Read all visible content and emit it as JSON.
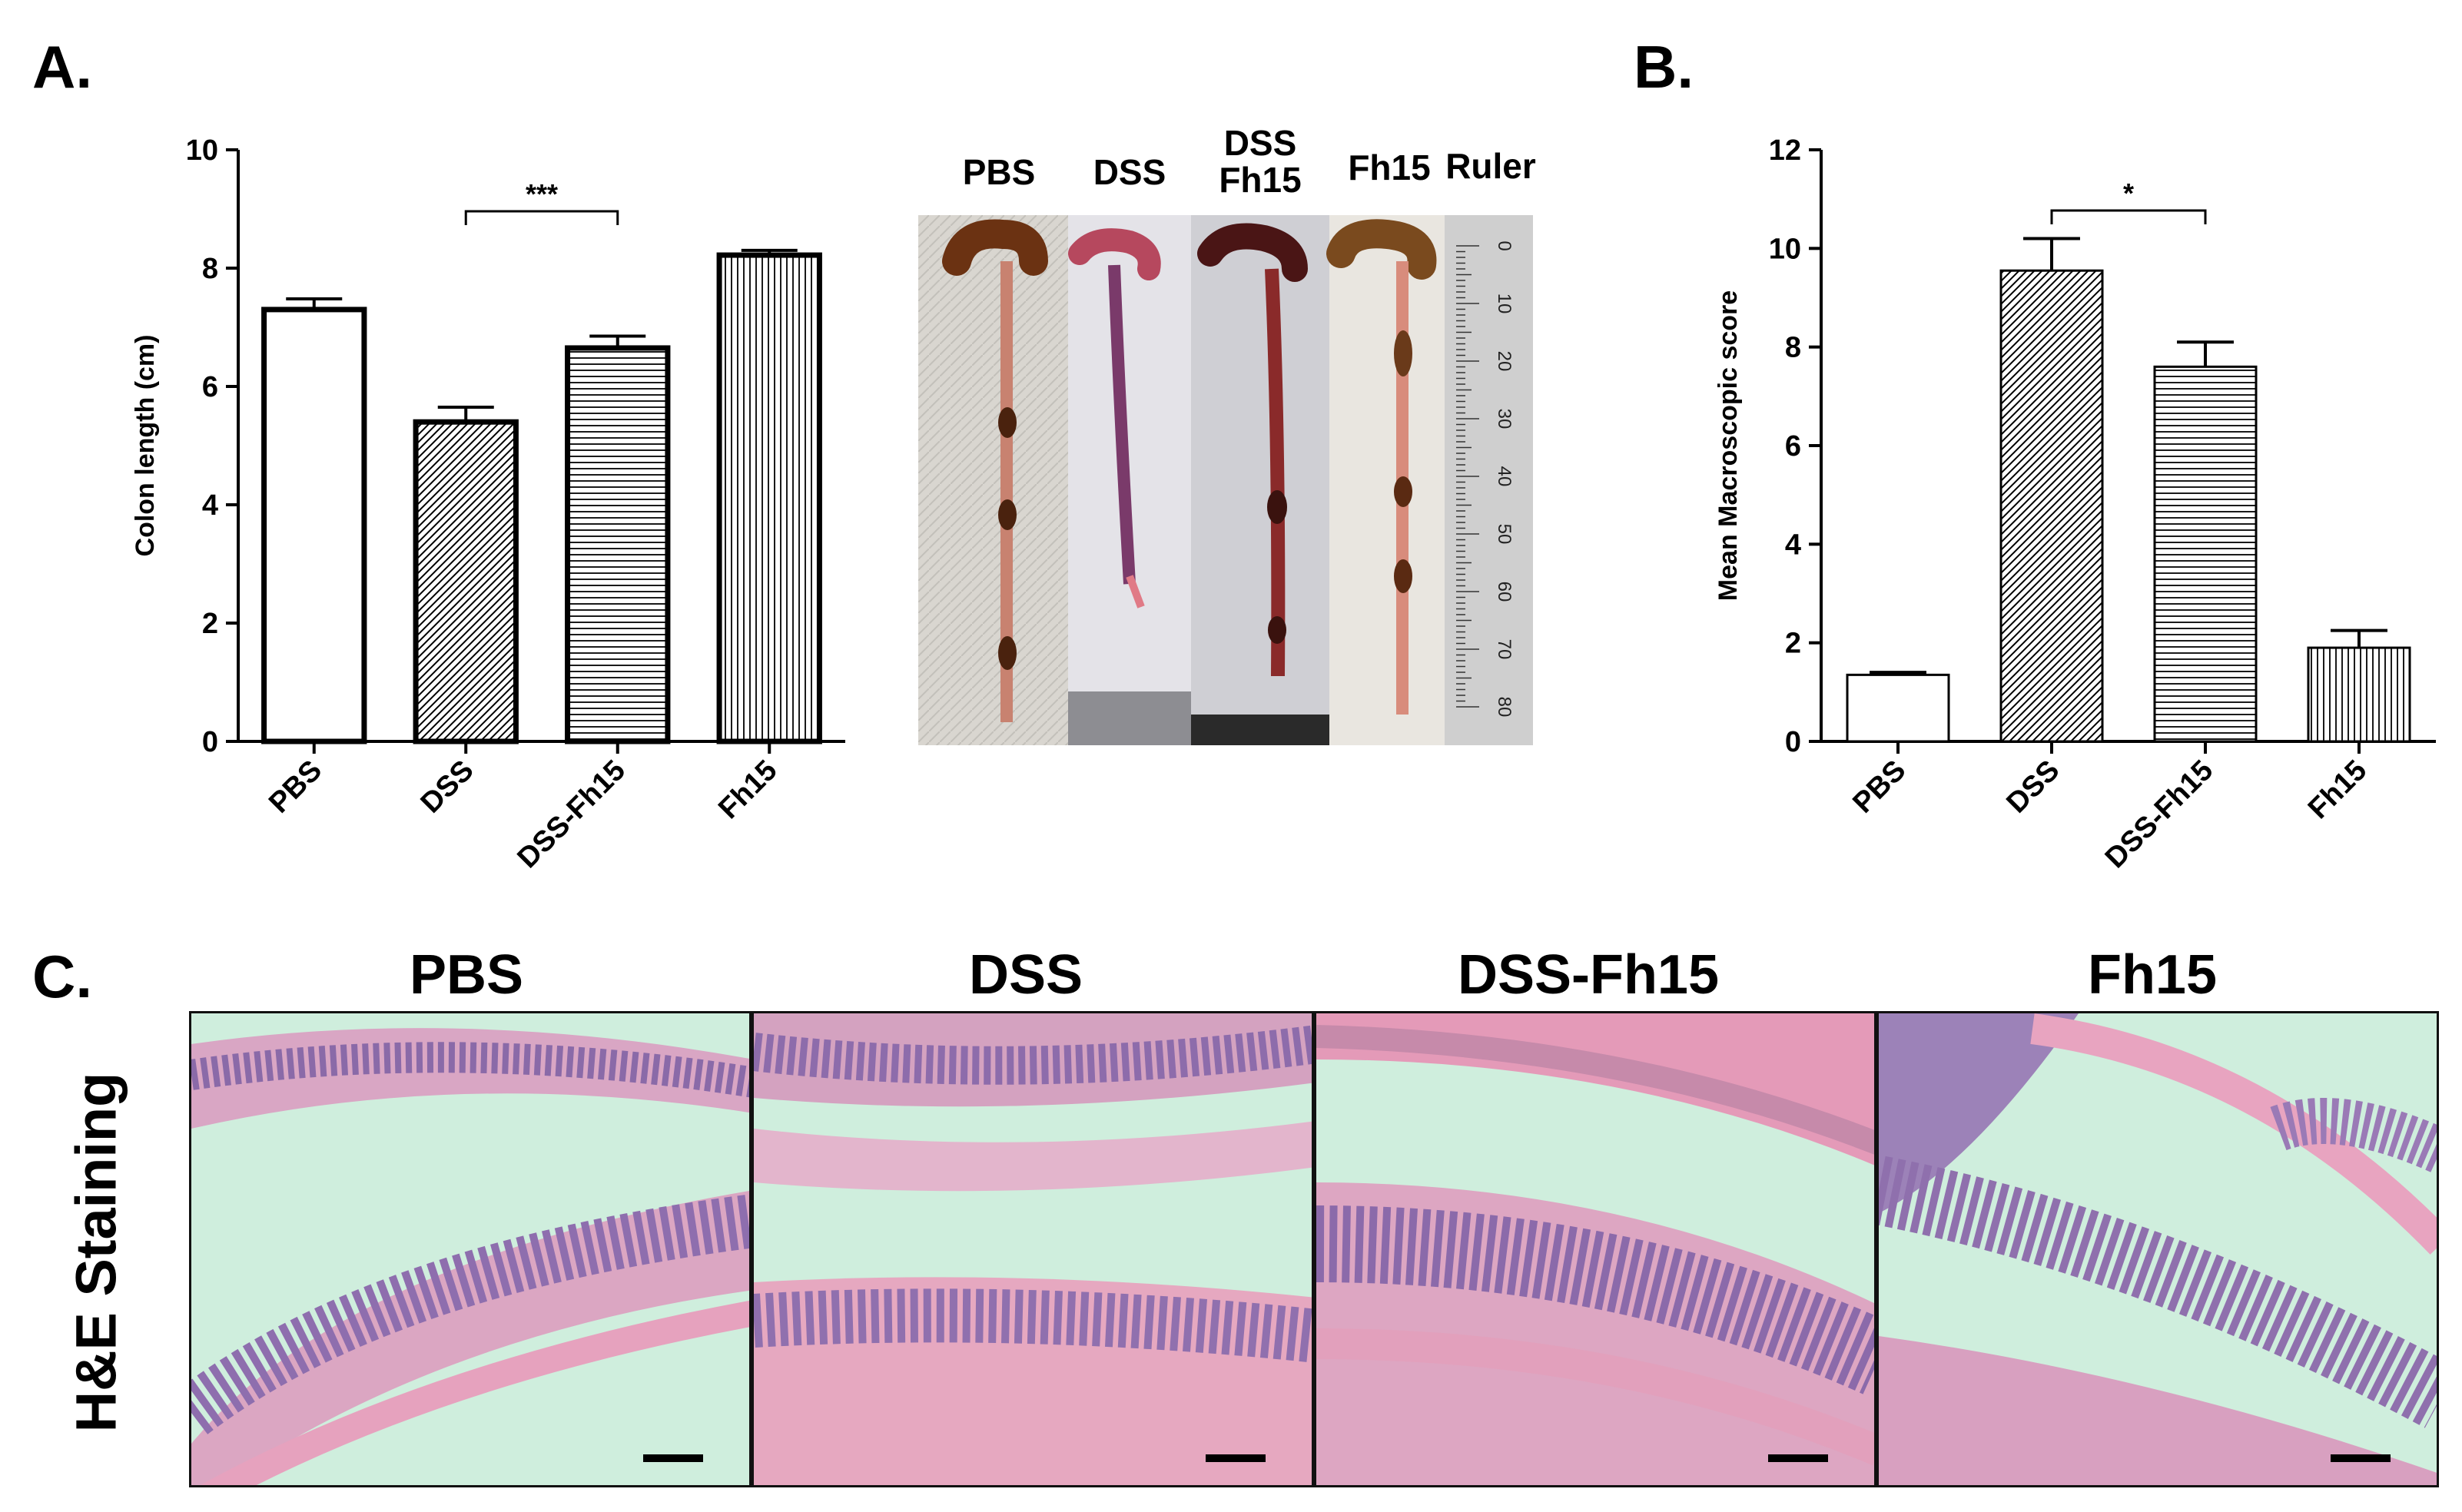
{
  "panels": {
    "a": "A.",
    "b": "B.",
    "c": "C."
  },
  "chart_data": [
    {
      "type": "bar",
      "categories": [
        "PBS",
        "DSS",
        "DSS-Fh15",
        "Fh15"
      ],
      "values": [
        7.3,
        5.4,
        6.65,
        8.22
      ],
      "errors": [
        0.18,
        0.25,
        0.2,
        0.08
      ],
      "ylabel": "Colon length (cm)",
      "ylim": [
        0,
        10
      ],
      "yticks": [
        "0",
        "2",
        "4",
        "6",
        "8",
        "10"
      ],
      "significance": {
        "from": "DSS",
        "to": "DSS-Fh15",
        "label": "***"
      },
      "patterns": [
        "open",
        "diagonal",
        "horizontal",
        "vertical"
      ]
    },
    {
      "type": "bar",
      "categories": [
        "PBS",
        "DSS",
        "DSS-Fh15",
        "Fh15"
      ],
      "values": [
        1.35,
        9.55,
        7.6,
        1.9
      ],
      "errors": [
        0.05,
        0.65,
        0.5,
        0.35
      ],
      "ylabel": "Mean Macroscopic score",
      "ylim": [
        0,
        12
      ],
      "yticks": [
        "0",
        "2",
        "4",
        "6",
        "8",
        "10",
        "12"
      ],
      "significance": {
        "from": "DSS",
        "to": "DSS-Fh15",
        "label": "*"
      },
      "patterns": [
        "open",
        "diagonal",
        "horizontal",
        "vertical"
      ]
    }
  ],
  "photo": {
    "labels": [
      "PBS",
      "DSS",
      "DSS\nFh15",
      "Fh15",
      "Ruler"
    ],
    "ruler_marks": [
      "0",
      "10",
      "20",
      "30",
      "40",
      "50",
      "60",
      "70",
      "80"
    ]
  },
  "histology": {
    "row_label": "H&E Staining",
    "titles": [
      "PBS",
      "DSS",
      "DSS-Fh15",
      "Fh15"
    ]
  },
  "colors": {
    "bar_stroke": "#000000",
    "tissue_bg": "#cfeedd",
    "tissue_pink": "#e8a6c2",
    "tissue_purple": "#9a79b8",
    "colon_dark": "#5a2a12",
    "colon_pink": "#d97a7a"
  }
}
